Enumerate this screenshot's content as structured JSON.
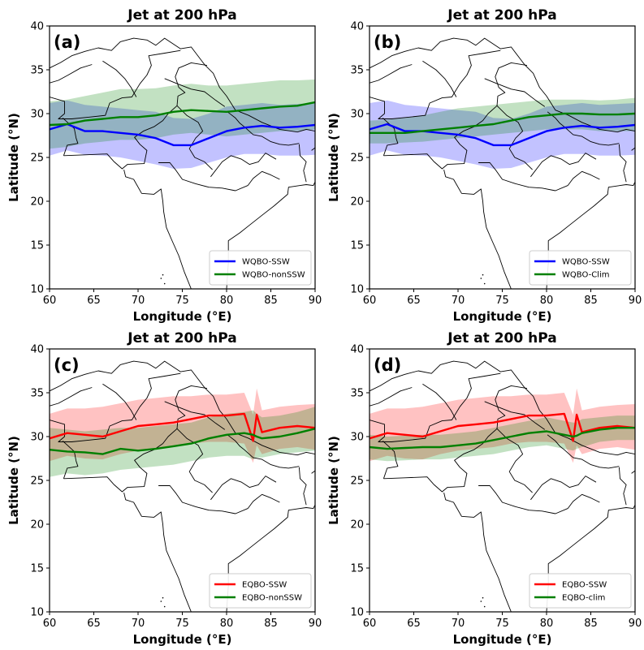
{
  "chart_data": [
    {
      "type": "line",
      "panel_label": "(a)",
      "title": "Jet at 200 hPa",
      "xlabel": "Longitude (°E)",
      "ylabel": "Latitude (°N)",
      "xlim": [
        60,
        90
      ],
      "ylim": [
        10,
        40
      ],
      "xticks": [
        "60",
        "65",
        "70",
        "75",
        "80",
        "85",
        "90"
      ],
      "yticks": [
        "10",
        "15",
        "20",
        "25",
        "30",
        "35",
        "40"
      ],
      "grid": false,
      "legend_position": "lower-right",
      "x": [
        60,
        62,
        64,
        66,
        68,
        70,
        72,
        74,
        76,
        78,
        80,
        82,
        84,
        86,
        88,
        90
      ],
      "series": [
        {
          "name": "WQBO-SSW",
          "color": "#0000ff",
          "values": [
            28.2,
            28.8,
            28.0,
            28.0,
            27.8,
            27.6,
            27.2,
            26.4,
            26.4,
            27.2,
            28.0,
            28.4,
            28.6,
            28.4,
            28.5,
            28.7
          ],
          "lower": [
            25.2,
            25.8,
            25.3,
            25.2,
            25.0,
            24.6,
            24.2,
            23.7,
            23.8,
            24.4,
            25.0,
            25.4,
            25.4,
            25.2,
            25.2,
            25.3
          ],
          "upper": [
            31.2,
            31.5,
            31.0,
            30.8,
            30.6,
            30.4,
            30.2,
            29.5,
            29.4,
            30.0,
            30.8,
            31.0,
            31.2,
            31.0,
            31.1,
            31.2
          ]
        },
        {
          "name": "WQBO-nonSSW",
          "color": "#008000",
          "values": [
            28.7,
            28.8,
            29.2,
            29.4,
            29.6,
            29.6,
            29.8,
            30.2,
            30.4,
            30.3,
            30.2,
            30.4,
            30.6,
            30.8,
            30.9,
            31.3
          ],
          "lower": [
            26.0,
            26.2,
            26.6,
            26.8,
            27.0,
            27.0,
            27.2,
            27.6,
            27.8,
            27.6,
            27.4,
            27.6,
            27.8,
            28.0,
            28.0,
            28.2
          ],
          "upper": [
            31.4,
            31.6,
            32.0,
            32.4,
            32.8,
            32.8,
            32.9,
            33.2,
            33.4,
            33.2,
            33.2,
            33.4,
            33.6,
            33.8,
            33.8,
            33.9
          ]
        }
      ]
    },
    {
      "type": "line",
      "panel_label": "(b)",
      "title": "Jet at 200 hPa",
      "xlabel": "Longitude (°E)",
      "ylabel": "Latitude (°N)",
      "xlim": [
        60,
        90
      ],
      "ylim": [
        10,
        40
      ],
      "xticks": [
        "60",
        "65",
        "70",
        "75",
        "80",
        "85",
        "90"
      ],
      "yticks": [
        "10",
        "15",
        "20",
        "25",
        "30",
        "35",
        "40"
      ],
      "grid": false,
      "legend_position": "lower-right",
      "x": [
        60,
        62,
        64,
        66,
        68,
        70,
        72,
        74,
        76,
        78,
        80,
        82,
        84,
        86,
        88,
        90
      ],
      "series": [
        {
          "name": "WQBO-SSW",
          "color": "#0000ff",
          "values": [
            28.2,
            28.8,
            28.0,
            28.0,
            27.8,
            27.6,
            27.2,
            26.4,
            26.4,
            27.2,
            28.0,
            28.4,
            28.6,
            28.4,
            28.5,
            28.7
          ],
          "lower": [
            25.2,
            25.8,
            25.3,
            25.2,
            25.0,
            24.6,
            24.2,
            23.7,
            23.8,
            24.4,
            25.0,
            25.4,
            25.4,
            25.2,
            25.2,
            25.3
          ],
          "upper": [
            31.2,
            31.5,
            31.0,
            30.8,
            30.6,
            30.4,
            30.2,
            29.5,
            29.4,
            30.0,
            30.8,
            31.0,
            31.2,
            31.0,
            31.1,
            31.2
          ]
        },
        {
          "name": "WQBO-Clim",
          "color": "#008000",
          "values": [
            27.8,
            27.8,
            27.8,
            28.0,
            28.2,
            28.4,
            28.6,
            28.8,
            29.2,
            29.6,
            29.8,
            30.0,
            30.0,
            29.9,
            29.9,
            30.0
          ],
          "lower": [
            26.6,
            26.6,
            26.7,
            26.8,
            27.0,
            27.2,
            27.4,
            27.6,
            27.8,
            28.0,
            28.2,
            28.2,
            28.2,
            28.0,
            28.0,
            28.0
          ],
          "upper": [
            29.2,
            29.3,
            29.5,
            29.8,
            30.2,
            30.6,
            30.8,
            31.0,
            31.2,
            31.4,
            31.6,
            31.6,
            31.6,
            31.5,
            31.6,
            31.8
          ]
        }
      ]
    },
    {
      "type": "line",
      "panel_label": "(c)",
      "title": "Jet at 200 hPa",
      "xlabel": "Longitude (°E)",
      "ylabel": "Latitude (°N)",
      "xlim": [
        60,
        90
      ],
      "ylim": [
        10,
        40
      ],
      "xticks": [
        "60",
        "65",
        "70",
        "75",
        "80",
        "85",
        "90"
      ],
      "yticks": [
        "10",
        "15",
        "20",
        "25",
        "30",
        "35",
        "40"
      ],
      "grid": false,
      "legend_position": "lower-right",
      "x": [
        60,
        62,
        64,
        66,
        68,
        70,
        72,
        74,
        76,
        78,
        80,
        82,
        83,
        83.4,
        84,
        86,
        88,
        90
      ],
      "series": [
        {
          "name": "EQBO-SSW",
          "color": "#ff0000",
          "values": [
            29.8,
            30.4,
            30.2,
            30.0,
            30.6,
            31.2,
            31.4,
            31.6,
            32.0,
            32.4,
            32.4,
            32.6,
            29.5,
            32.5,
            30.5,
            31.0,
            31.2,
            31.0
          ],
          "lower": [
            27.2,
            27.8,
            27.5,
            27.4,
            28.0,
            28.4,
            28.6,
            28.8,
            29.2,
            29.4,
            29.4,
            29.2,
            27.0,
            29.0,
            28.0,
            28.6,
            28.8,
            28.5
          ],
          "upper": [
            32.6,
            33.2,
            33.2,
            33.4,
            33.8,
            34.2,
            34.4,
            34.6,
            34.6,
            34.8,
            34.8,
            35.0,
            32.5,
            35.5,
            33.0,
            33.4,
            33.6,
            33.7
          ]
        },
        {
          "name": "EQBO-nonSSW",
          "color": "#008000",
          "values": [
            28.5,
            28.3,
            28.2,
            28.0,
            28.6,
            28.4,
            28.6,
            28.9,
            29.2,
            29.8,
            30.2,
            30.4,
            30.2,
            30.0,
            29.8,
            30.0,
            30.4,
            30.9
          ],
          "lower": [
            25.4,
            25.8,
            25.6,
            25.8,
            26.2,
            26.4,
            26.6,
            26.8,
            27.2,
            27.6,
            27.8,
            27.8,
            27.4,
            27.6,
            27.6,
            28.0,
            28.2,
            28.4
          ],
          "upper": [
            31.0,
            30.8,
            30.6,
            30.8,
            31.0,
            31.0,
            31.2,
            31.4,
            31.6,
            32.2,
            32.6,
            32.8,
            33.0,
            32.6,
            32.2,
            32.4,
            32.8,
            33.4
          ]
        }
      ]
    },
    {
      "type": "line",
      "panel_label": "(d)",
      "title": "Jet at 200 hPa",
      "xlabel": "Longitude (°E)",
      "ylabel": "Latitude (°N)",
      "xlim": [
        60,
        90
      ],
      "ylim": [
        10,
        40
      ],
      "xticks": [
        "60",
        "65",
        "70",
        "75",
        "80",
        "85",
        "90"
      ],
      "yticks": [
        "10",
        "15",
        "20",
        "25",
        "30",
        "35",
        "40"
      ],
      "grid": false,
      "legend_position": "lower-right",
      "x": [
        60,
        62,
        64,
        66,
        68,
        70,
        72,
        74,
        76,
        78,
        80,
        82,
        83,
        83.4,
        84,
        86,
        88,
        90
      ],
      "series": [
        {
          "name": "EQBO-SSW",
          "color": "#ff0000",
          "values": [
            29.8,
            30.4,
            30.2,
            30.0,
            30.6,
            31.2,
            31.4,
            31.6,
            32.0,
            32.4,
            32.4,
            32.6,
            29.5,
            32.5,
            30.5,
            31.0,
            31.2,
            31.0
          ],
          "lower": [
            27.2,
            27.8,
            27.5,
            27.4,
            28.0,
            28.4,
            28.6,
            28.8,
            29.2,
            29.4,
            29.4,
            29.2,
            27.0,
            29.0,
            28.0,
            28.6,
            28.8,
            28.5
          ],
          "upper": [
            32.6,
            33.2,
            33.2,
            33.4,
            33.8,
            34.2,
            34.4,
            34.6,
            34.6,
            34.8,
            34.8,
            35.0,
            32.5,
            35.5,
            33.0,
            33.4,
            33.6,
            33.7
          ]
        },
        {
          "name": "EQBO-clim",
          "color": "#008000",
          "values": [
            28.8,
            28.6,
            28.7,
            28.8,
            28.8,
            29.0,
            29.2,
            29.6,
            30.0,
            30.4,
            30.6,
            30.2,
            30.0,
            30.1,
            30.4,
            30.8,
            31.0,
            31.0
          ],
          "lower": [
            27.4,
            27.2,
            27.3,
            27.4,
            27.4,
            27.6,
            27.8,
            28.0,
            28.4,
            28.8,
            29.0,
            28.6,
            28.4,
            28.6,
            28.8,
            29.4,
            29.6,
            29.6
          ],
          "upper": [
            30.2,
            30.0,
            30.1,
            30.2,
            30.2,
            30.4,
            30.6,
            31.0,
            31.4,
            31.8,
            32.2,
            31.8,
            31.6,
            31.6,
            32.0,
            32.2,
            32.4,
            32.4
          ]
        }
      ]
    }
  ]
}
